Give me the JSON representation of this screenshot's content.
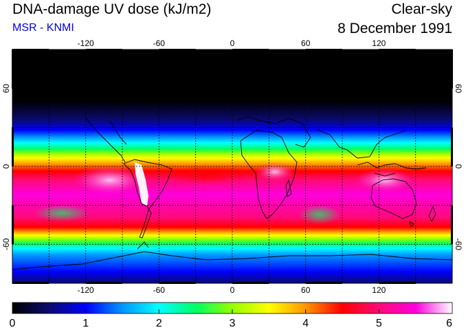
{
  "header": {
    "title": "DNA-damage UV dose (kJ/m2)",
    "source": "MSR - KNMI",
    "condition": "Clear-sky",
    "date": "8 December 1991"
  },
  "colors": {
    "source_text": "#0000e0"
  },
  "map": {
    "lon_ticks": [
      "-120",
      "-60",
      "0",
      "60",
      "120"
    ],
    "lat_ticks_left": [
      "60",
      "0",
      "-60"
    ],
    "lat_ticks_right": [
      "60",
      "0",
      "-60"
    ]
  },
  "colorbar": {
    "labels": [
      "0",
      "1",
      "2",
      "3",
      "4",
      "5",
      "6"
    ],
    "stops": [
      "#000000",
      "#0a0a6e",
      "#0000ff",
      "#0096ff",
      "#00ffff",
      "#00ff64",
      "#96ff00",
      "#ffff00",
      "#ff9600",
      "#ff0000",
      "#ff0a78",
      "#ff00dc",
      "#ffffff"
    ]
  }
}
